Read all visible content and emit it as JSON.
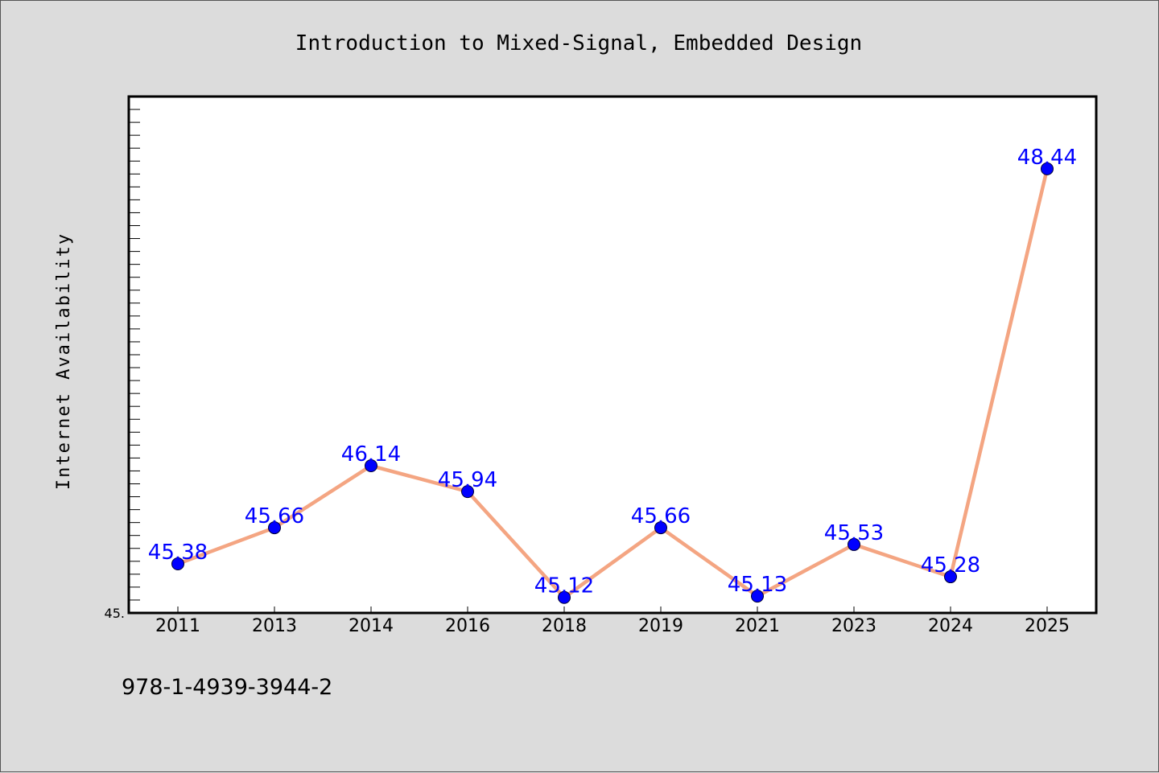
{
  "chart_data": {
    "type": "line",
    "title": "Introduction to Mixed-Signal, Embedded Design",
    "xlabel": "",
    "ylabel": "Internet Availability",
    "categories": [
      "2011",
      "2013",
      "2014",
      "2016",
      "2018",
      "2019",
      "2021",
      "2023",
      "2024",
      "2025"
    ],
    "series": [
      {
        "values": [
          45.38,
          45.66,
          46.14,
          45.94,
          45.12,
          45.66,
          45.13,
          45.53,
          45.28,
          48.44
        ],
        "labels": [
          "45.38",
          "45.66",
          "46.14",
          "45.94",
          "45.12",
          "45.66",
          "45.13",
          "45.53",
          "45.28",
          "48.44"
        ]
      }
    ],
    "ylim": [
      45.0,
      49.0
    ],
    "y_tick_label": "45.",
    "grid": false,
    "line_color": "#f4a582",
    "marker_color": "#0000ff",
    "label_color": "#0000ff"
  },
  "footer_text": "978-1-4939-3944-2"
}
